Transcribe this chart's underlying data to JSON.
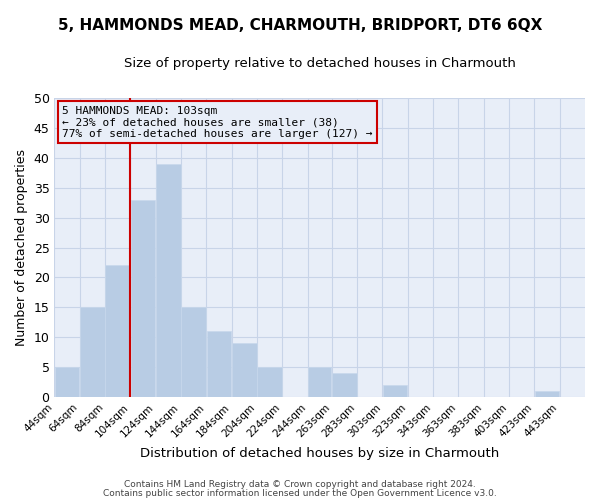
{
  "title": "5, HAMMONDS MEAD, CHARMOUTH, BRIDPORT, DT6 6QX",
  "subtitle": "Size of property relative to detached houses in Charmouth",
  "xlabel": "Distribution of detached houses by size in Charmouth",
  "ylabel": "Number of detached properties",
  "bar_left_edges": [
    44,
    64,
    84,
    104,
    124,
    144,
    164,
    184,
    204,
    224,
    244,
    263,
    283,
    303,
    323,
    343,
    363,
    383,
    403,
    423
  ],
  "bar_widths": [
    20,
    20,
    20,
    20,
    20,
    20,
    20,
    20,
    20,
    20,
    19,
    20,
    20,
    20,
    20,
    20,
    20,
    20,
    20,
    20
  ],
  "bar_heights": [
    5,
    15,
    22,
    33,
    39,
    15,
    11,
    9,
    5,
    0,
    5,
    4,
    0,
    2,
    0,
    0,
    0,
    0,
    0,
    1
  ],
  "bar_color": "#b8cce4",
  "bar_edgecolor": "#c8d8ec",
  "tick_labels": [
    "44sqm",
    "64sqm",
    "84sqm",
    "104sqm",
    "124sqm",
    "144sqm",
    "164sqm",
    "184sqm",
    "204sqm",
    "224sqm",
    "244sqm",
    "263sqm",
    "283sqm",
    "303sqm",
    "323sqm",
    "343sqm",
    "363sqm",
    "383sqm",
    "403sqm",
    "423sqm",
    "443sqm"
  ],
  "tick_positions": [
    44,
    64,
    84,
    104,
    124,
    144,
    164,
    184,
    204,
    224,
    244,
    263,
    283,
    303,
    323,
    343,
    363,
    383,
    403,
    423,
    443
  ],
  "ylim": [
    0,
    50
  ],
  "yticks": [
    0,
    5,
    10,
    15,
    20,
    25,
    30,
    35,
    40,
    45,
    50
  ],
  "xlim_min": 44,
  "xlim_max": 463,
  "vline_x": 104,
  "vline_color": "#cc0000",
  "annotation_title": "5 HAMMONDS MEAD: 103sqm",
  "annotation_line1": "← 23% of detached houses are smaller (38)",
  "annotation_line2": "77% of semi-detached houses are larger (127) →",
  "annotation_box_color": "#cc0000",
  "annotation_text_color": "#000000",
  "grid_color": "#c8d4e8",
  "plot_bg_color": "#e8eef8",
  "fig_bg_color": "#ffffff",
  "footer1": "Contains HM Land Registry data © Crown copyright and database right 2024.",
  "footer2": "Contains public sector information licensed under the Open Government Licence v3.0.",
  "title_fontsize": 11,
  "subtitle_fontsize": 9.5,
  "ylabel_fontsize": 9,
  "xlabel_fontsize": 9.5,
  "tick_fontsize": 7.5,
  "footer_fontsize": 6.5
}
